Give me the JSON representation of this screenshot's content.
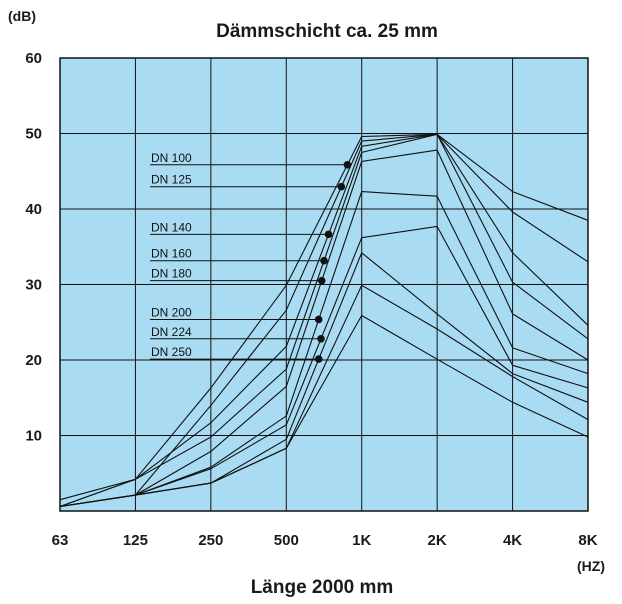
{
  "chart_data": {
    "type": "line",
    "title": "Dämmschicht ca. 25 mm",
    "xlabel": "Länge 2000 mm",
    "ylabel": "(dB)",
    "x_unit": "(HZ)",
    "categories": [
      "63",
      "125",
      "250",
      "500",
      "1K",
      "2K",
      "4K",
      "8K"
    ],
    "yticks": [
      "10",
      "20",
      "30",
      "40",
      "50",
      "60"
    ],
    "ylim": [
      0,
      60
    ],
    "grid": true,
    "colors": {
      "plot_background": "#a9dcf3",
      "grid": "#111111",
      "line": "#111111",
      "marker": "#111111"
    },
    "series": [
      {
        "name": "DN 100",
        "marker_x": 0.81,
        "values": [
          1.5,
          4.2,
          16.3,
          29.9,
          49.6,
          49.9,
          42.3,
          38.5
        ]
      },
      {
        "name": "DN 125",
        "marker_x": 0.73,
        "values": [
          0.6,
          2.1,
          14.0,
          26.6,
          49.0,
          49.9,
          39.6,
          33.0
        ]
      },
      {
        "name": "DN 140",
        "marker_x": 0.56,
        "values": [
          0.6,
          4.2,
          11.7,
          21.8,
          48.3,
          49.9,
          34.2,
          24.6
        ]
      },
      {
        "name": "DN 160",
        "marker_x": 0.5,
        "values": [
          0.6,
          4.2,
          9.8,
          18.8,
          47.5,
          49.9,
          30.3,
          22.8
        ]
      },
      {
        "name": "DN 180",
        "marker_x": 0.47,
        "values": [
          0.6,
          2.1,
          7.9,
          16.5,
          46.3,
          47.8,
          26.1,
          20.0
        ]
      },
      {
        "name": "DN 200",
        "marker_x": 0.43,
        "values": [
          0.6,
          2.1,
          5.8,
          12.6,
          42.3,
          41.7,
          21.6,
          18.2
        ]
      },
      {
        "name": "DN 224",
        "marker_x": 0.46,
        "values": [
          0.6,
          2.1,
          5.6,
          11.4,
          36.2,
          37.7,
          19.3,
          16.3
        ]
      },
      {
        "name": "DN 250",
        "marker_x": 0.43,
        "values": [
          0.6,
          2.1,
          3.7,
          9.5,
          34.2,
          26.1,
          18.2,
          14.4
        ]
      },
      {
        "name": "",
        "values": [
          0.6,
          2.1,
          3.7,
          8.3,
          29.9,
          24.1,
          17.8,
          12.1
        ]
      },
      {
        "name": "",
        "values": [
          0.6,
          2.1,
          3.7,
          8.3,
          25.9,
          20.1,
          14.4,
          9.8
        ]
      }
    ]
  }
}
